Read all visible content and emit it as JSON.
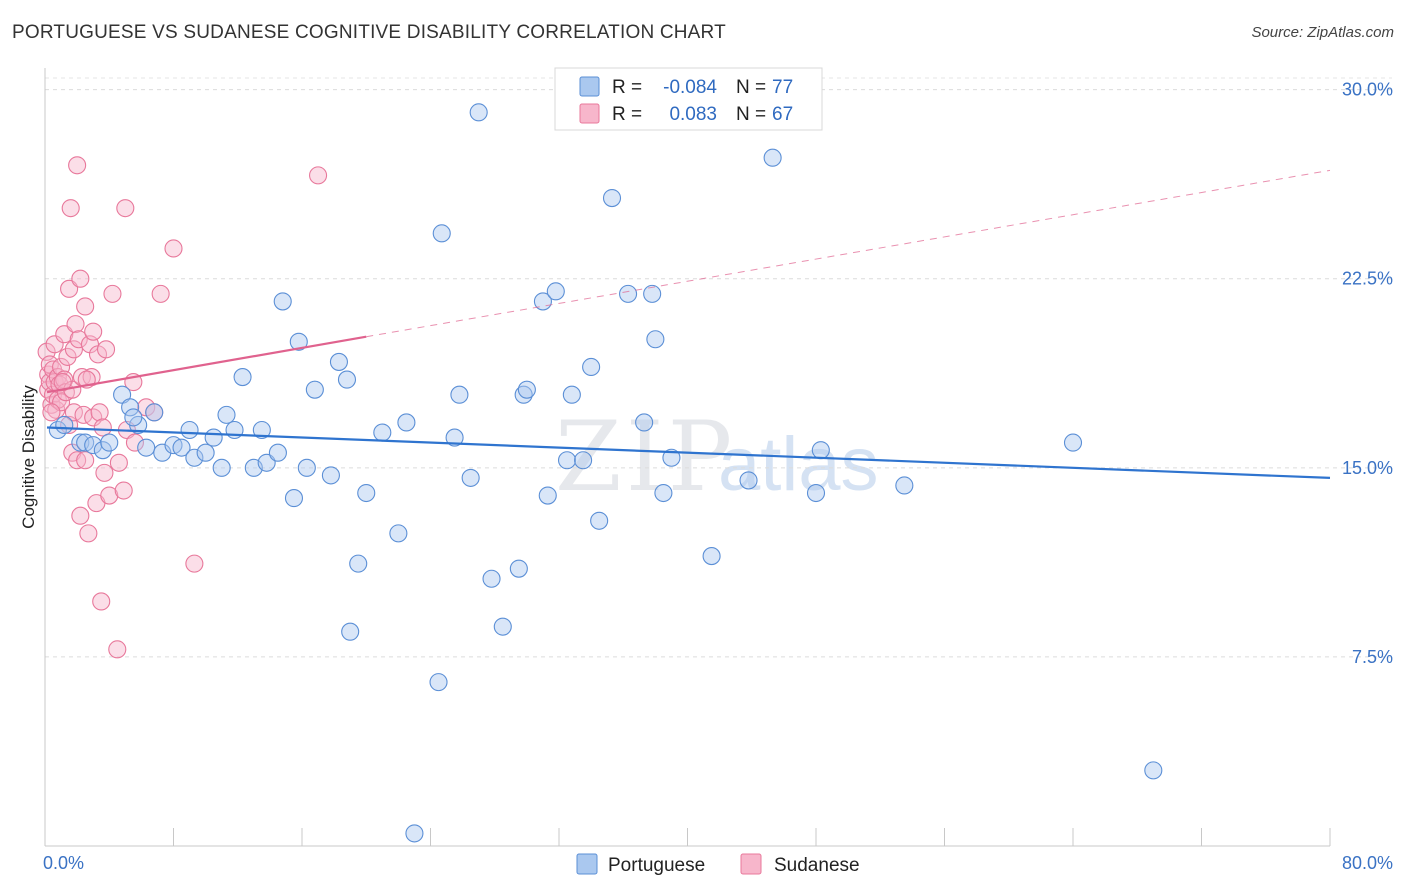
{
  "title": "PORTUGUESE VS SUDANESE COGNITIVE DISABILITY CORRELATION CHART",
  "source": "Source: ZipAtlas.com",
  "watermark": {
    "zip": "ZIP",
    "atlas": "atlas"
  },
  "legend": {
    "rows": [
      {
        "r_label": "R =",
        "r_value": "-0.084",
        "n_label": "N =",
        "n_value": "77"
      },
      {
        "r_label": "R =",
        "r_value": "0.083",
        "n_label": "N =",
        "n_value": "67"
      }
    ]
  },
  "chart_data": {
    "type": "scatter",
    "title": "PORTUGUESE VS SUDANESE COGNITIVE DISABILITY CORRELATION CHART",
    "xlabel": "",
    "ylabel": "Cognitive Disability",
    "xlim": [
      0,
      80
    ],
    "ylim": [
      0,
      30.7
    ],
    "x_tick_labels": [
      "0.0%",
      "80.0%"
    ],
    "y_ticks": [
      7.5,
      15.0,
      22.5,
      30.0
    ],
    "y_tick_labels": [
      "7.5%",
      "15.0%",
      "22.5%",
      "30.0%"
    ],
    "grid": "horizontal dashed",
    "legend_position": "bottom-center",
    "colors": {
      "portuguese_fill": "#aac8ef",
      "portuguese_stroke": "#5b8fd6",
      "portuguese_line": "#2f74cf",
      "sudanese_fill": "#f7b6cb",
      "sudanese_stroke": "#e8789b",
      "sudanese_line": "#e0628e",
      "value_text": "#3a72c4"
    },
    "series": [
      {
        "name": "Portuguese",
        "trend": {
          "x": [
            0,
            80
          ],
          "y": [
            16.6,
            14.6
          ],
          "style": "solid"
        },
        "points": [
          [
            0.8,
            16.5
          ],
          [
            1.2,
            16.7
          ],
          [
            2.2,
            16.0
          ],
          [
            2.5,
            16.0
          ],
          [
            3.0,
            15.9
          ],
          [
            3.6,
            15.7
          ],
          [
            4.0,
            16.0
          ],
          [
            4.8,
            17.9
          ],
          [
            5.3,
            17.4
          ],
          [
            5.8,
            16.7
          ],
          [
            6.3,
            15.8
          ],
          [
            6.8,
            17.2
          ],
          [
            7.3,
            15.6
          ],
          [
            8.0,
            15.9
          ],
          [
            8.5,
            15.8
          ],
          [
            9.0,
            16.5
          ],
          [
            9.3,
            15.4
          ],
          [
            10.0,
            15.6
          ],
          [
            10.5,
            16.2
          ],
          [
            11.0,
            15.0
          ],
          [
            11.3,
            17.1
          ],
          [
            11.8,
            16.5
          ],
          [
            12.3,
            18.6
          ],
          [
            13.0,
            15.0
          ],
          [
            13.5,
            16.5
          ],
          [
            13.8,
            15.2
          ],
          [
            14.5,
            15.6
          ],
          [
            14.8,
            21.6
          ],
          [
            15.5,
            13.8
          ],
          [
            15.8,
            20.0
          ],
          [
            16.3,
            15.0
          ],
          [
            16.8,
            18.1
          ],
          [
            17.8,
            14.7
          ],
          [
            18.8,
            18.5
          ],
          [
            18.3,
            19.2
          ],
          [
            19.0,
            8.5
          ],
          [
            19.5,
            11.2
          ],
          [
            20.0,
            14.0
          ],
          [
            21.0,
            16.4
          ],
          [
            22.5,
            16.8
          ],
          [
            22.0,
            12.4
          ],
          [
            23.0,
            0.5
          ],
          [
            24.5,
            6.5
          ],
          [
            24.7,
            24.3
          ],
          [
            25.5,
            16.2
          ],
          [
            25.8,
            17.9
          ],
          [
            26.5,
            14.6
          ],
          [
            27.0,
            29.1
          ],
          [
            27.8,
            10.6
          ],
          [
            28.5,
            8.7
          ],
          [
            29.5,
            11.0
          ],
          [
            29.8,
            17.9
          ],
          [
            30.0,
            18.1
          ],
          [
            31.0,
            21.6
          ],
          [
            31.3,
            13.9
          ],
          [
            31.8,
            22.0
          ],
          [
            32.5,
            15.3
          ],
          [
            32.8,
            17.9
          ],
          [
            33.5,
            15.3
          ],
          [
            34.0,
            19.0
          ],
          [
            34.5,
            12.9
          ],
          [
            35.3,
            25.7
          ],
          [
            36.3,
            21.9
          ],
          [
            37.3,
            16.8
          ],
          [
            37.8,
            21.9
          ],
          [
            38.0,
            20.1
          ],
          [
            38.5,
            14.0
          ],
          [
            39.0,
            15.4
          ],
          [
            41.5,
            11.5
          ],
          [
            43.8,
            14.5
          ],
          [
            45.3,
            27.3
          ],
          [
            48.0,
            14.0
          ],
          [
            48.3,
            15.7
          ],
          [
            64.0,
            16.0
          ],
          [
            69.0,
            3.0
          ],
          [
            53.5,
            14.3
          ],
          [
            5.5,
            17.0
          ]
        ]
      },
      {
        "name": "Sudanese",
        "trend_solid": {
          "x": [
            0,
            20
          ],
          "y": [
            18.0,
            20.2
          ]
        },
        "trend_dashed": {
          "x": [
            20,
            80
          ],
          "y": [
            20.2,
            26.8
          ]
        },
        "points": [
          [
            0.1,
            19.6
          ],
          [
            0.2,
            18.7
          ],
          [
            0.2,
            18.1
          ],
          [
            0.3,
            18.4
          ],
          [
            0.3,
            19.1
          ],
          [
            0.4,
            17.5
          ],
          [
            0.5,
            18.9
          ],
          [
            0.5,
            17.9
          ],
          [
            0.6,
            18.4
          ],
          [
            0.6,
            19.9
          ],
          [
            0.7,
            17.3
          ],
          [
            0.8,
            18.6
          ],
          [
            0.8,
            17.7
          ],
          [
            0.9,
            18.3
          ],
          [
            1.0,
            19.0
          ],
          [
            1.0,
            17.6
          ],
          [
            1.2,
            18.5
          ],
          [
            1.2,
            20.3
          ],
          [
            1.3,
            18.0
          ],
          [
            1.4,
            19.4
          ],
          [
            1.5,
            16.7
          ],
          [
            1.5,
            22.1
          ],
          [
            1.6,
            25.3
          ],
          [
            1.7,
            18.1
          ],
          [
            1.7,
            15.6
          ],
          [
            1.8,
            19.7
          ],
          [
            1.8,
            17.2
          ],
          [
            1.9,
            20.7
          ],
          [
            2.0,
            27.0
          ],
          [
            2.0,
            15.3
          ],
          [
            2.1,
            20.1
          ],
          [
            2.2,
            22.5
          ],
          [
            2.2,
            13.1
          ],
          [
            2.3,
            18.6
          ],
          [
            2.4,
            17.1
          ],
          [
            2.5,
            21.4
          ],
          [
            2.5,
            15.3
          ],
          [
            2.7,
            12.4
          ],
          [
            2.8,
            19.9
          ],
          [
            2.9,
            18.6
          ],
          [
            3.0,
            17.0
          ],
          [
            3.0,
            20.4
          ],
          [
            3.2,
            13.6
          ],
          [
            3.3,
            19.5
          ],
          [
            3.4,
            17.2
          ],
          [
            3.5,
            9.7
          ],
          [
            3.6,
            16.6
          ],
          [
            3.7,
            14.8
          ],
          [
            3.8,
            19.7
          ],
          [
            4.0,
            13.9
          ],
          [
            4.2,
            21.9
          ],
          [
            4.5,
            7.8
          ],
          [
            4.6,
            15.2
          ],
          [
            4.9,
            14.1
          ],
          [
            5.0,
            25.3
          ],
          [
            5.1,
            16.5
          ],
          [
            5.5,
            18.4
          ],
          [
            5.6,
            16.0
          ],
          [
            6.3,
            17.4
          ],
          [
            6.8,
            17.2
          ],
          [
            7.2,
            21.9
          ],
          [
            8.0,
            23.7
          ],
          [
            9.3,
            11.2
          ],
          [
            17.0,
            26.6
          ],
          [
            0.4,
            17.2
          ],
          [
            1.1,
            18.4
          ],
          [
            2.6,
            18.5
          ]
        ]
      }
    ]
  }
}
